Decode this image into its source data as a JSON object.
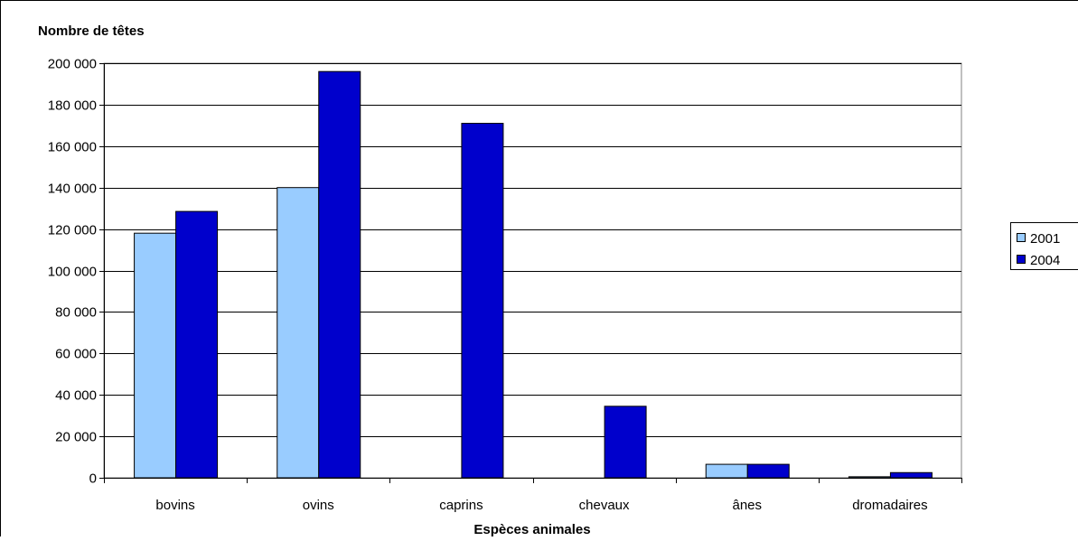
{
  "chart_data": {
    "type": "bar",
    "ylabel": "Nombre de têtes",
    "xlabel": "Espèces animales",
    "categories": [
      "bovins",
      "ovins",
      "caprins",
      "chevaux",
      "ânes",
      "dromadaires"
    ],
    "series": [
      {
        "name": "2001",
        "color": "#99ccff",
        "values": [
          118000,
          140000,
          0,
          0,
          6500,
          500
        ]
      },
      {
        "name": "2004",
        "color": "#0000cc",
        "values": [
          128500,
          196000,
          171000,
          34500,
          6500,
          2500
        ]
      }
    ],
    "ylim": [
      0,
      200000
    ],
    "yticks": [
      0,
      20000,
      40000,
      60000,
      80000,
      100000,
      120000,
      140000,
      160000,
      180000,
      200000
    ],
    "ytick_labels": [
      "0",
      "20 000",
      "40 000",
      "60 000",
      "80 000",
      "100 000",
      "120 000",
      "140 000",
      "160 000",
      "180 000",
      "200 000"
    ],
    "grid": true,
    "legend": "right"
  }
}
